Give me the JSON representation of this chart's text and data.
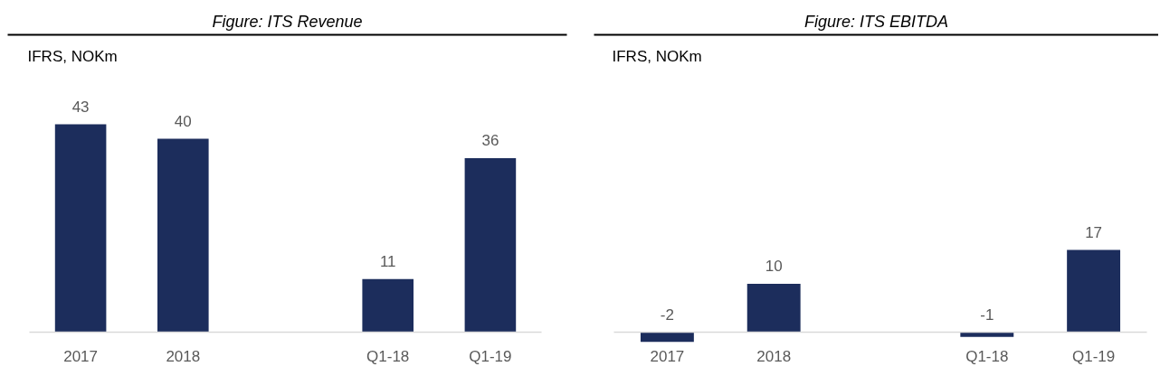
{
  "chart_data": [
    {
      "type": "bar",
      "title": "Figure: ITS Revenue",
      "subtitle": "IFRS, NOKm",
      "categories": [
        "2017",
        "2018",
        null,
        "Q1-18",
        "Q1-19"
      ],
      "values": [
        43,
        40,
        null,
        11,
        36
      ],
      "color": "#1c2d5c",
      "data_labels": true,
      "tick_labels": "x"
    },
    {
      "type": "bar",
      "title": "Figure: ITS EBITDA",
      "subtitle": "IFRS, NOKm",
      "categories": [
        "2017",
        "2018",
        null,
        "Q1-18",
        "Q1-19"
      ],
      "values": [
        -2,
        10,
        null,
        -1,
        17
      ],
      "color": "#1c2d5c",
      "data_labels": true,
      "tick_labels": "x"
    }
  ]
}
